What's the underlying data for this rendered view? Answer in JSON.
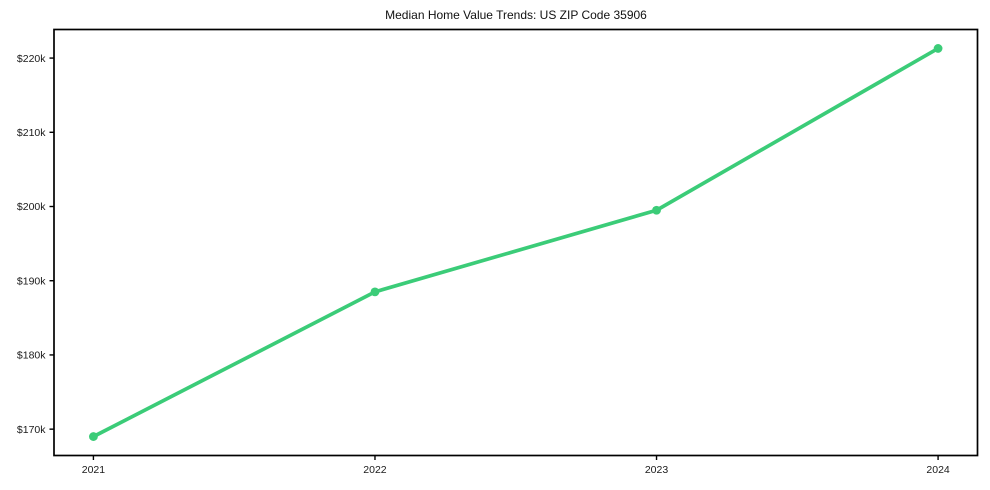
{
  "figure": {
    "background_color": "#ffffff"
  },
  "chart_data": {
    "type": "line",
    "title": "Median Home Value Trends: US ZIP Code 35906",
    "x": [
      2021,
      2022,
      2023,
      2024
    ],
    "values": [
      169000,
      188500,
      199500,
      221300
    ],
    "xlabel": "",
    "ylabel": "",
    "xlim": [
      2020.86,
      2024.14
    ],
    "ylim": [
      166450,
      223850
    ],
    "xticks": [
      {
        "value": 2021,
        "label": "2021"
      },
      {
        "value": 2022,
        "label": "2022"
      },
      {
        "value": 2023,
        "label": "2023"
      },
      {
        "value": 2024,
        "label": "2024"
      }
    ],
    "yticks": [
      {
        "value": 170000,
        "label": "$170k"
      },
      {
        "value": 180000,
        "label": "$180k"
      },
      {
        "value": 190000,
        "label": "$190k"
      },
      {
        "value": 200000,
        "label": "$200k"
      },
      {
        "value": 210000,
        "label": "$210k"
      },
      {
        "value": 220000,
        "label": "$220k"
      }
    ],
    "grid": false,
    "legend": null,
    "line_color": "#3bcc78",
    "marker_color": "#3bcc78",
    "axis_color": "#000000",
    "text_color": "#1a1a1a"
  }
}
